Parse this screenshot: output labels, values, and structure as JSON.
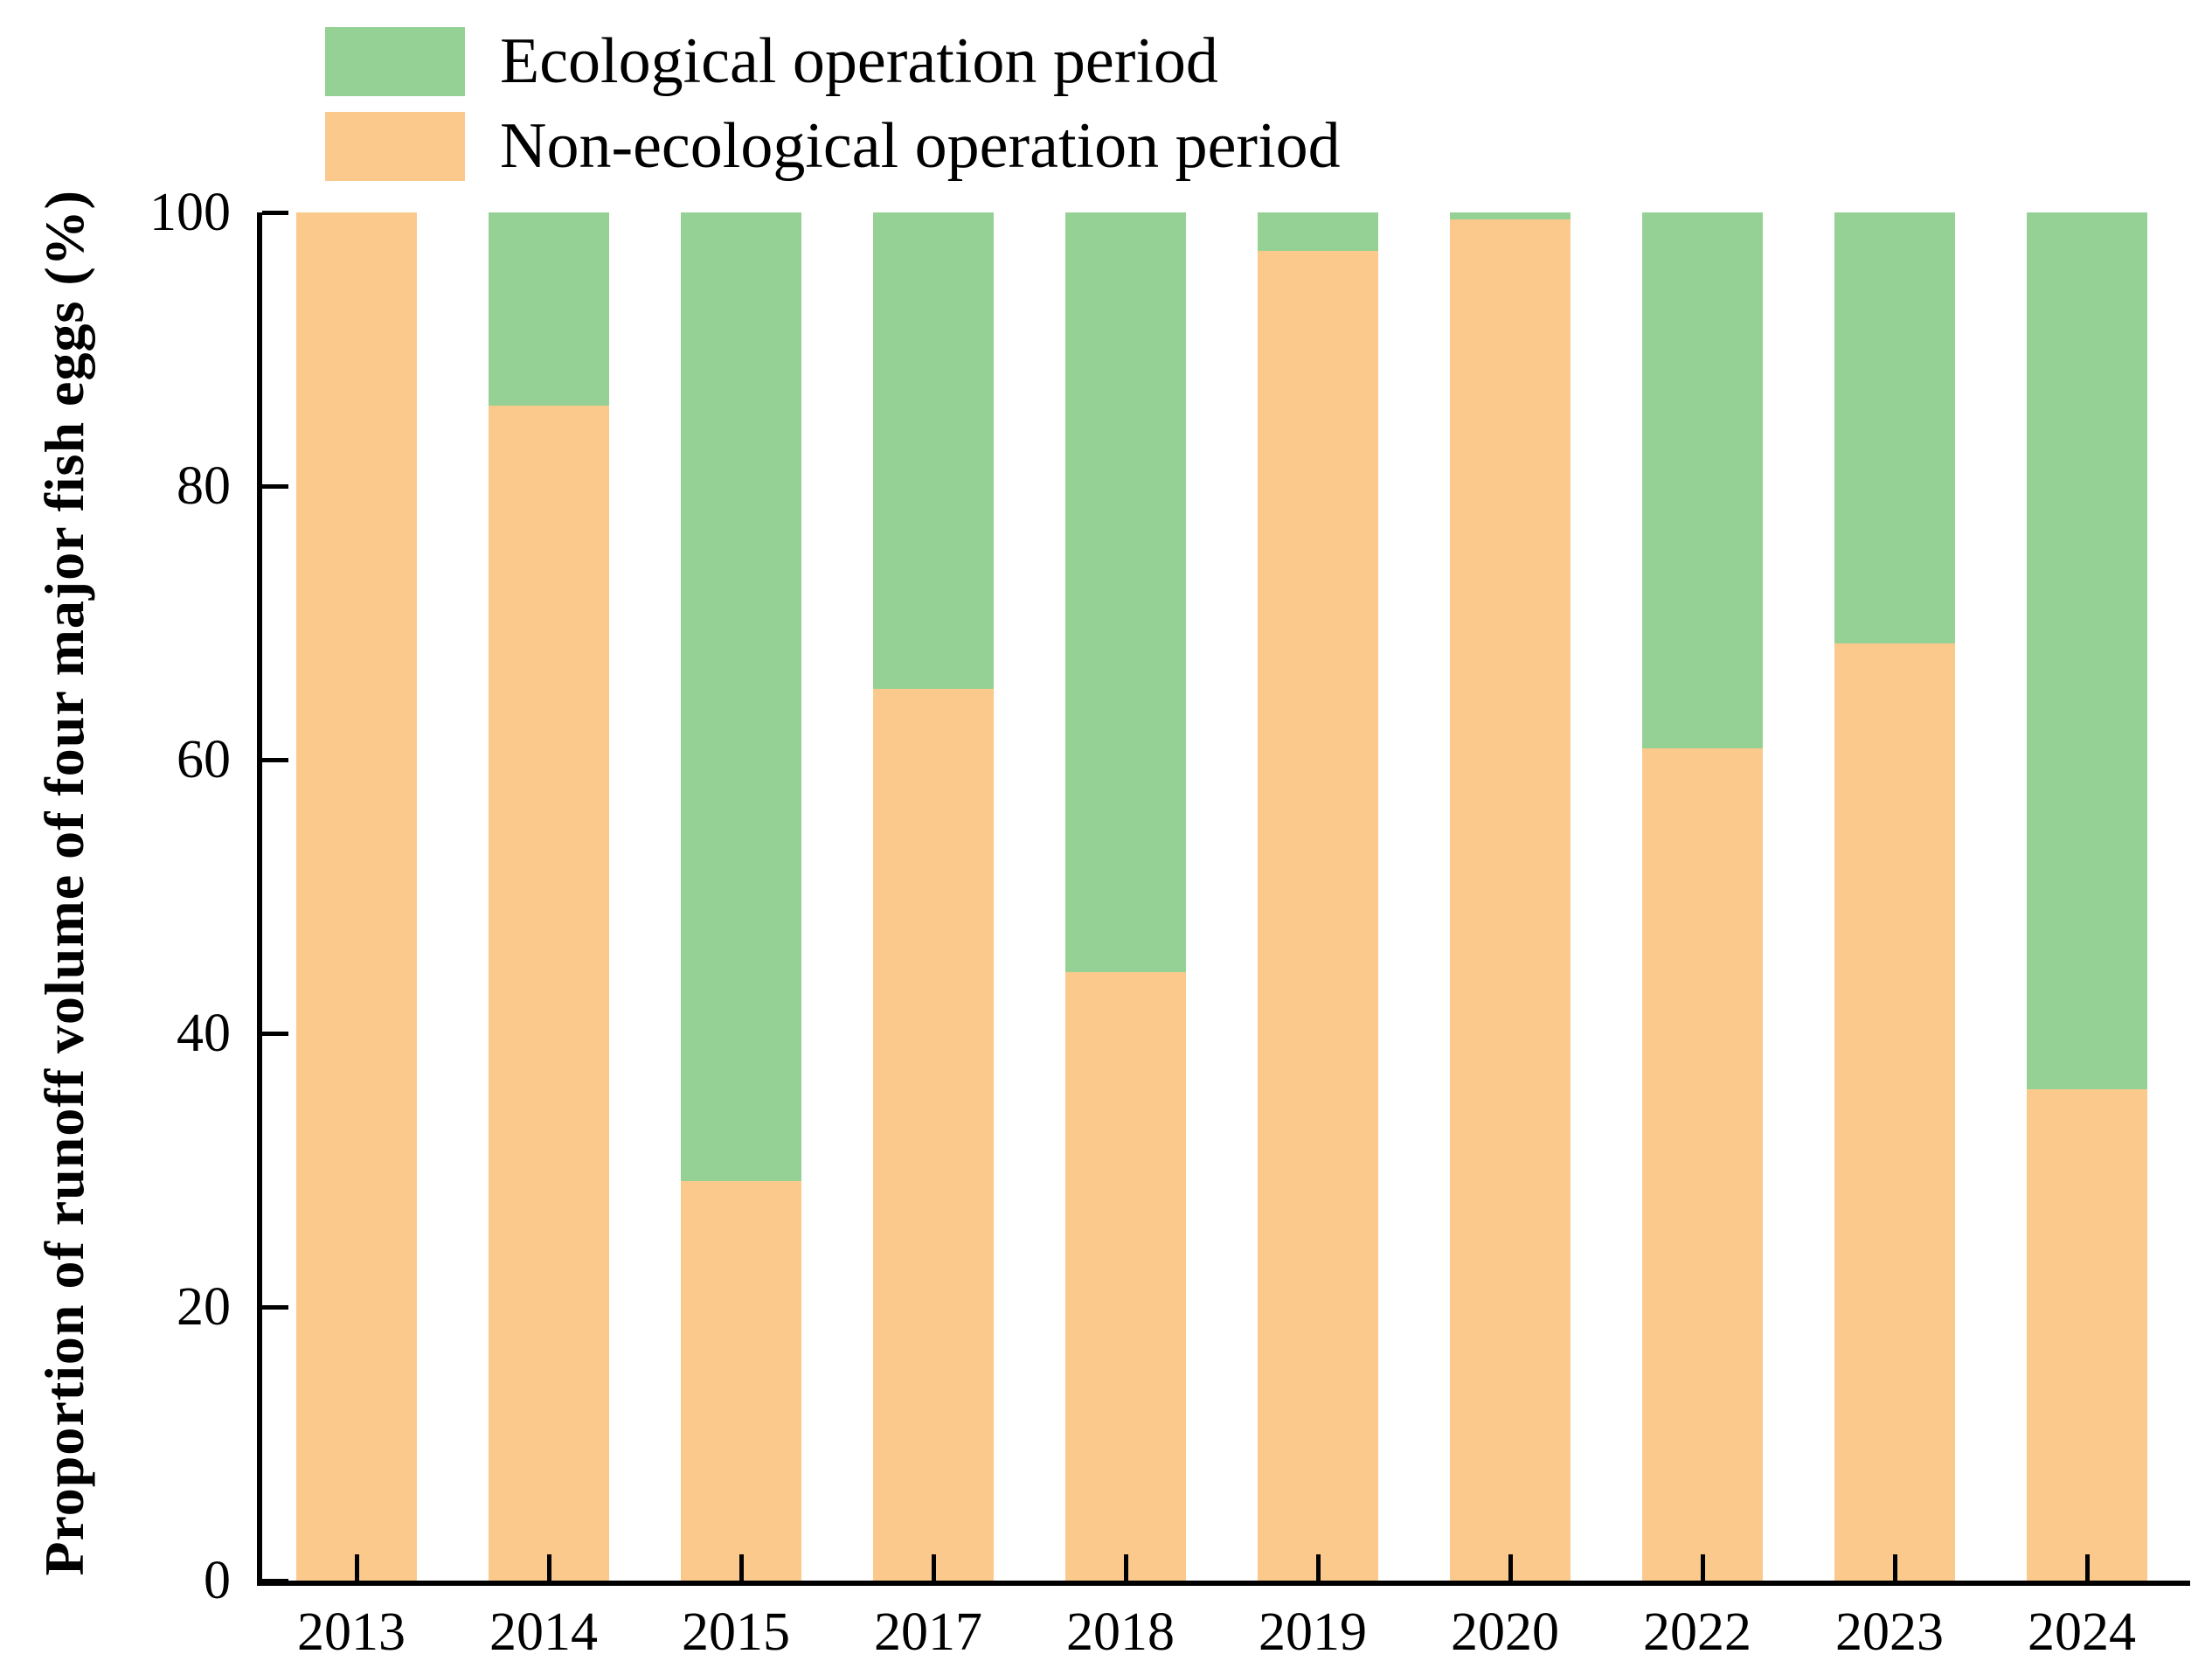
{
  "legend": {
    "items": [
      {
        "label": "Ecological operation period",
        "color": "#95D195"
      },
      {
        "label": "Non-ecological operation period",
        "color": "#FBC98C"
      }
    ]
  },
  "y_axis": {
    "title": "Proportion of runoff volume of four major fish eggs (%)"
  },
  "chart_data": {
    "type": "bar",
    "stacked": true,
    "title": "",
    "xlabel": "",
    "ylabel": "Proportion of runoff volume of four major fish eggs (%)",
    "ylim": [
      0,
      100
    ],
    "yticks": [
      0,
      20,
      40,
      60,
      80,
      100
    ],
    "grid": false,
    "legend_position": "top-left",
    "categories": [
      "2013",
      "2014",
      "2015",
      "2017",
      "2018",
      "2019",
      "2020",
      "2022",
      "2023",
      "2024"
    ],
    "series": [
      {
        "name": "Non-ecological operation period",
        "color": "#FBC98C",
        "values": [
          100,
          85.9,
          29.2,
          65.2,
          44.5,
          97.2,
          99.5,
          60.8,
          68.5,
          35.9
        ]
      },
      {
        "name": "Ecological operation period",
        "color": "#95D195",
        "values": [
          0,
          14.1,
          70.8,
          34.8,
          55.5,
          2.8,
          0.5,
          39.2,
          31.5,
          64.1
        ]
      }
    ]
  }
}
